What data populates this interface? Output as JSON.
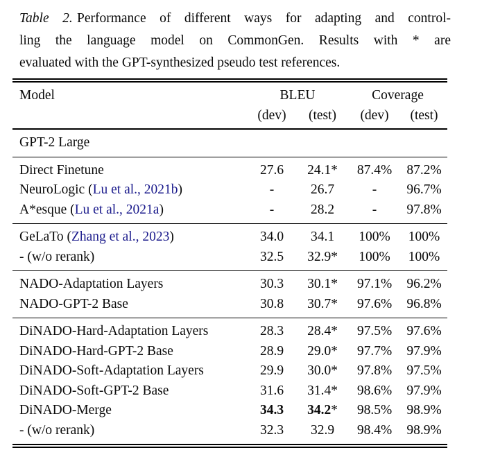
{
  "caption": {
    "label": "Table 2.",
    "lines": [
      "Performance of different ways for adapting and control-",
      "ling the language model on CommonGen.  Results with * are",
      "evaluated with the GPT-synthesized pseudo test references."
    ]
  },
  "colors": {
    "citation_link": "#1b1b8c",
    "text": "#0a0a0a",
    "rule": "#000000"
  },
  "table": {
    "header": {
      "model": "Model",
      "bleu": "BLEU",
      "coverage": "Coverage",
      "subs": [
        "(dev)",
        "(test)",
        "(dev)",
        "(test)"
      ]
    },
    "sections": [
      {
        "label_row": true,
        "rows": [
          {
            "model": [
              {
                "text": "GPT-2 Large"
              }
            ],
            "cells": []
          }
        ]
      },
      {
        "rows": [
          {
            "model": [
              {
                "text": "Direct Finetune"
              }
            ],
            "cells": [
              [
                {
                  "text": "27.6"
                }
              ],
              [
                {
                  "text": "24.1*"
                }
              ],
              [
                {
                  "text": "87.4%"
                }
              ],
              [
                {
                  "text": "87.2%"
                }
              ]
            ]
          },
          {
            "model": [
              {
                "text": "NeuroLogic ("
              },
              {
                "text": "Lu et al., 2021b",
                "style": "link"
              },
              {
                "text": ")"
              }
            ],
            "cells": [
              [
                {
                  "text": "-"
                }
              ],
              [
                {
                  "text": "26.7"
                }
              ],
              [
                {
                  "text": "-"
                }
              ],
              [
                {
                  "text": "96.7%"
                }
              ]
            ]
          },
          {
            "model": [
              {
                "text": "A*esque ("
              },
              {
                "text": "Lu et al., 2021a",
                "style": "link"
              },
              {
                "text": ")"
              }
            ],
            "cells": [
              [
                {
                  "text": "-"
                }
              ],
              [
                {
                  "text": "28.2"
                }
              ],
              [
                {
                  "text": "-"
                }
              ],
              [
                {
                  "text": "97.8%"
                }
              ]
            ]
          }
        ]
      },
      {
        "rows": [
          {
            "model": [
              {
                "text": "GeLaTo ("
              },
              {
                "text": "Zhang et al., 2023",
                "style": "link"
              },
              {
                "text": ")"
              }
            ],
            "cells": [
              [
                {
                  "text": "34.0"
                }
              ],
              [
                {
                  "text": "34.1"
                }
              ],
              [
                {
                  "text": "100%"
                }
              ],
              [
                {
                  "text": "100%"
                }
              ]
            ]
          },
          {
            "model": [
              {
                "text": "- (w/o rerank)"
              }
            ],
            "cells": [
              [
                {
                  "text": "32.5"
                }
              ],
              [
                {
                  "text": "32.9*"
                }
              ],
              [
                {
                  "text": "100%"
                }
              ],
              [
                {
                  "text": "100%"
                }
              ]
            ]
          }
        ]
      },
      {
        "rows": [
          {
            "model": [
              {
                "text": "NADO-Adaptation Layers"
              }
            ],
            "cells": [
              [
                {
                  "text": "30.3"
                }
              ],
              [
                {
                  "text": "30.1*"
                }
              ],
              [
                {
                  "text": "97.1%"
                }
              ],
              [
                {
                  "text": "96.2%"
                }
              ]
            ]
          },
          {
            "model": [
              {
                "text": "NADO-GPT-2 Base"
              }
            ],
            "cells": [
              [
                {
                  "text": "30.8"
                }
              ],
              [
                {
                  "text": "30.7*"
                }
              ],
              [
                {
                  "text": "97.6%"
                }
              ],
              [
                {
                  "text": "96.8%"
                }
              ]
            ]
          }
        ]
      },
      {
        "rows": [
          {
            "model": [
              {
                "text": "DiNADO-Hard-Adaptation Layers"
              }
            ],
            "cells": [
              [
                {
                  "text": "28.3"
                }
              ],
              [
                {
                  "text": "28.4*"
                }
              ],
              [
                {
                  "text": "97.5%"
                }
              ],
              [
                {
                  "text": "97.6%"
                }
              ]
            ]
          },
          {
            "model": [
              {
                "text": "DiNADO-Hard-GPT-2 Base"
              }
            ],
            "cells": [
              [
                {
                  "text": "28.9"
                }
              ],
              [
                {
                  "text": "29.0*"
                }
              ],
              [
                {
                  "text": "97.7%"
                }
              ],
              [
                {
                  "text": "97.9%"
                }
              ]
            ]
          },
          {
            "model": [
              {
                "text": "DiNADO-Soft-Adaptation Layers"
              }
            ],
            "cells": [
              [
                {
                  "text": "29.9"
                }
              ],
              [
                {
                  "text": "30.0*"
                }
              ],
              [
                {
                  "text": "97.8%"
                }
              ],
              [
                {
                  "text": "97.5%"
                }
              ]
            ]
          },
          {
            "model": [
              {
                "text": "DiNADO-Soft-GPT-2 Base"
              }
            ],
            "cells": [
              [
                {
                  "text": "31.6"
                }
              ],
              [
                {
                  "text": "31.4*"
                }
              ],
              [
                {
                  "text": "98.6%"
                }
              ],
              [
                {
                  "text": "97.9%"
                }
              ]
            ]
          },
          {
            "model": [
              {
                "text": "DiNADO-Merge"
              }
            ],
            "cells": [
              [
                {
                  "text": "34.3",
                  "style": "bold"
                }
              ],
              [
                {
                  "text": "34.2",
                  "style": "bold"
                },
                {
                  "text": "*"
                }
              ],
              [
                {
                  "text": "98.5%"
                }
              ],
              [
                {
                  "text": "98.9%"
                }
              ]
            ]
          },
          {
            "model": [
              {
                "text": "- (w/o rerank)"
              }
            ],
            "cells": [
              [
                {
                  "text": "32.3"
                }
              ],
              [
                {
                  "text": "32.9"
                }
              ],
              [
                {
                  "text": "98.4%"
                }
              ],
              [
                {
                  "text": "98.9%"
                }
              ]
            ]
          }
        ]
      }
    ]
  }
}
